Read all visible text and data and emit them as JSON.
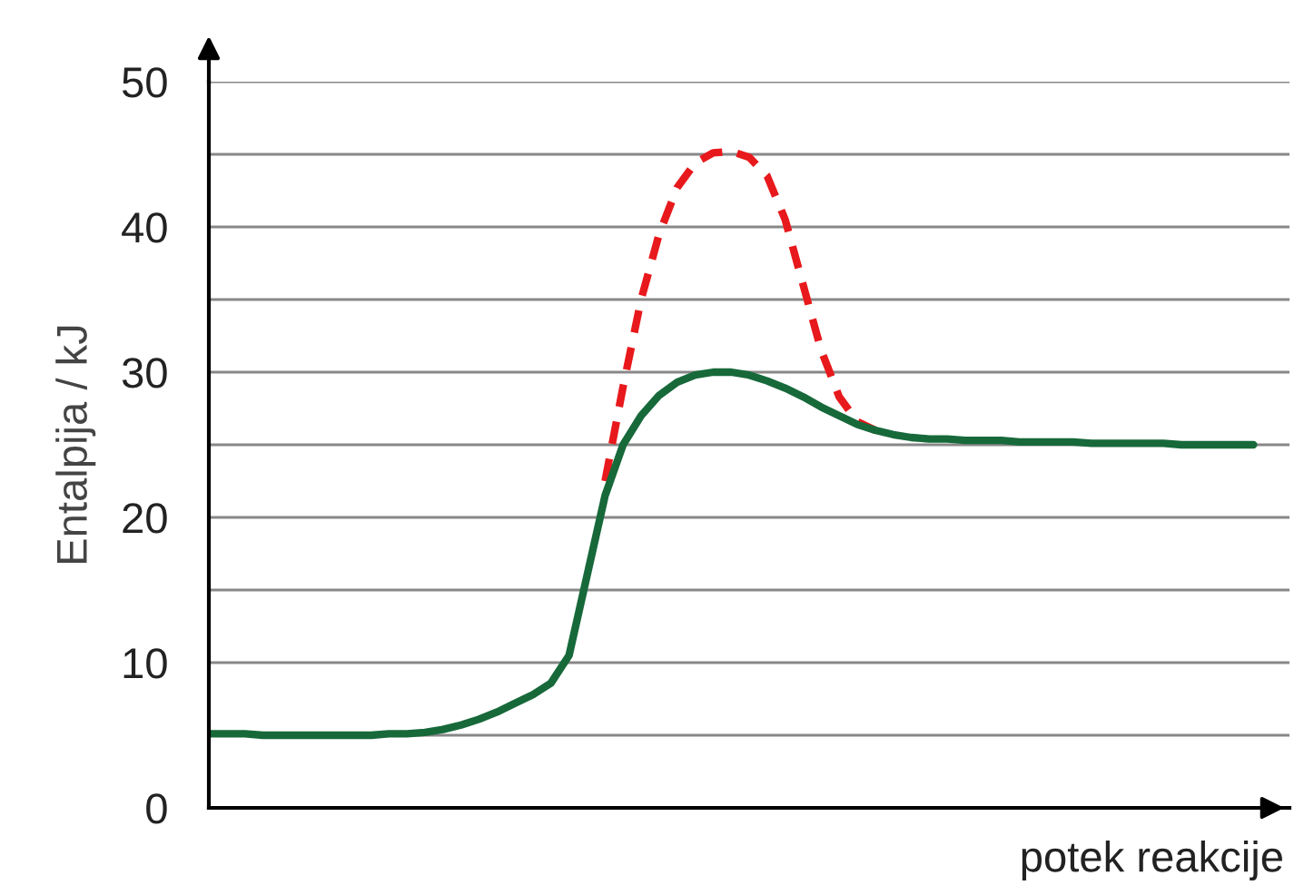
{
  "chart_data": {
    "type": "line",
    "xlabel": "potek reakcije",
    "ylabel": "Entalpija / kJ",
    "categories": [
      null,
      null,
      null,
      null,
      null,
      null,
      null,
      null,
      null,
      null,
      null,
      null,
      null,
      null,
      null,
      null,
      null,
      null,
      null,
      null,
      null,
      null,
      null,
      null,
      null,
      null,
      null,
      null,
      null,
      null,
      null,
      null,
      null,
      null,
      null,
      null,
      null,
      null,
      null,
      null,
      null,
      null,
      null,
      null,
      null,
      null,
      null,
      null,
      null,
      null,
      null,
      null,
      null,
      null,
      null,
      null,
      null,
      null,
      null
    ],
    "series": [
      {
        "color": "#e8191c",
        "line_style": "dashed",
        "values": [
          null,
          null,
          null,
          null,
          null,
          null,
          null,
          null,
          null,
          null,
          null,
          null,
          null,
          null,
          null,
          null,
          null,
          null,
          null,
          null,
          null,
          null,
          22.5,
          29,
          35,
          39.5,
          42.7,
          44.4,
          45.1,
          45.2,
          44.8,
          43.5,
          40.5,
          36,
          31.5,
          28.3,
          26.6,
          26.0,
          null,
          null,
          null,
          null,
          null,
          null,
          null,
          null,
          null,
          null,
          null,
          null,
          null,
          null,
          null,
          null,
          null,
          null,
          null,
          null,
          null
        ]
      },
      {
        "color": "#17693a",
        "line_style": "solid",
        "values": [
          5.1,
          5.1,
          5.1,
          5.0,
          5.0,
          5.0,
          5.0,
          5.0,
          5.0,
          5.0,
          5.1,
          5.1,
          5.2,
          5.4,
          5.7,
          6.1,
          6.6,
          7.2,
          7.8,
          8.6,
          10.5,
          16,
          21.5,
          25,
          27,
          28.4,
          29.3,
          29.8,
          30.0,
          30.0,
          29.8,
          29.4,
          28.9,
          28.3,
          27.6,
          27.0,
          26.4,
          26.0,
          25.7,
          25.5,
          25.4,
          25.4,
          25.3,
          25.3,
          25.3,
          25.2,
          25.2,
          25.2,
          25.2,
          25.1,
          25.1,
          25.1,
          25.1,
          25.1,
          25.0,
          25.0,
          25.0,
          25.0,
          25.0
        ]
      }
    ],
    "ylim": [
      0,
      50
    ],
    "yticks": [
      0,
      {
        "value": 5,
        "label": null
      },
      10,
      {
        "value": 15,
        "label": null
      },
      20,
      {
        "value": 25,
        "label": null
      },
      30,
      {
        "value": 35,
        "label": null
      },
      40,
      {
        "value": 45,
        "label": null
      },
      50
    ],
    "grid": "y",
    "legend": false
  }
}
